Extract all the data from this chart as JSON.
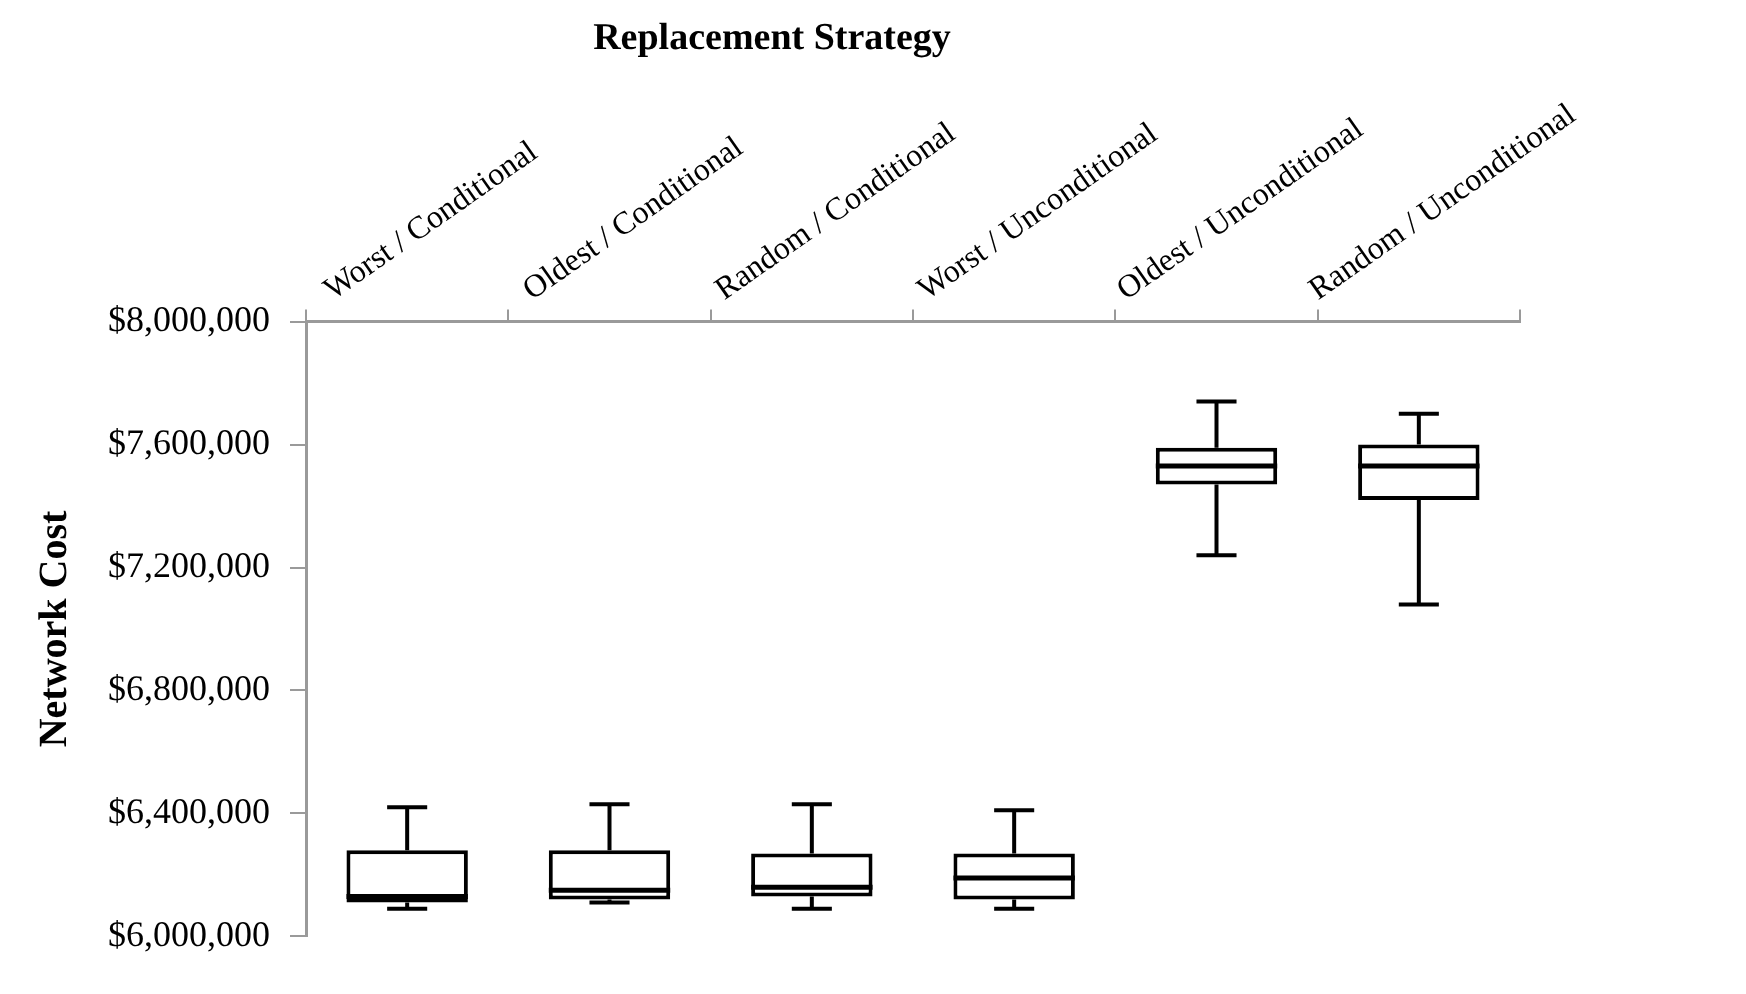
{
  "chart_data": {
    "type": "box",
    "title": "Replacement Strategy",
    "ylabel": "Network Cost",
    "categories": [
      "Worst / Conditional",
      "Oldest / Conditional",
      "Random / Conditional",
      "Worst / Unconditional",
      "Oldest / Unconditional",
      "Random / Unconditional"
    ],
    "boxes": [
      {
        "low": 6090000,
        "q1": 6110000,
        "median": 6130000,
        "q3": 6280000,
        "high": 6420000
      },
      {
        "low": 6110000,
        "q1": 6120000,
        "median": 6150000,
        "q3": 6280000,
        "high": 6430000
      },
      {
        "low": 6090000,
        "q1": 6130000,
        "median": 6160000,
        "q3": 6270000,
        "high": 6430000
      },
      {
        "low": 6090000,
        "q1": 6120000,
        "median": 6190000,
        "q3": 6270000,
        "high": 6410000
      },
      {
        "low": 7240000,
        "q1": 7470000,
        "median": 7530000,
        "q3": 7590000,
        "high": 7740000
      },
      {
        "low": 7080000,
        "q1": 7420000,
        "median": 7530000,
        "q3": 7600000,
        "high": 7700000
      }
    ],
    "color": "#000000",
    "ylim": [
      6000000,
      8000000
    ],
    "yticks": [
      {
        "value": 6000000,
        "label": "$6,000,000"
      },
      {
        "value": 6400000,
        "label": "$6,400,000"
      },
      {
        "value": 6800000,
        "label": "$6,800,000"
      },
      {
        "value": 7200000,
        "label": "$7,200,000"
      },
      {
        "value": 7600000,
        "label": "$7,600,000"
      },
      {
        "value": 8000000,
        "label": "$8,000,000"
      }
    ],
    "grid": false,
    "legend": false
  }
}
